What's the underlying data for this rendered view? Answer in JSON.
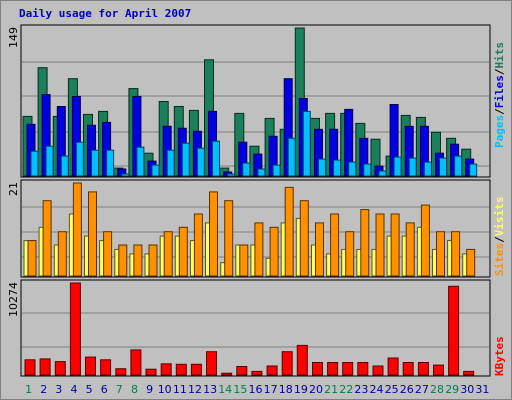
{
  "title": "Daily usage for April 2007",
  "colors": {
    "hits": "#1a7f5a",
    "files": "#0000e0",
    "pages": "#00c0ff",
    "visits": "#ffff60",
    "sites": "#ff9000",
    "kbytes": "#ff0000",
    "weekend_label": "#00804a",
    "weekday_label": "#0000a0",
    "title": "#0000c0"
  },
  "labels": {
    "right_top": [
      "Pages",
      "/",
      "Files",
      "/",
      "Hits"
    ],
    "right_mid": [
      "Sites",
      "/",
      "Visits"
    ],
    "right_bottom": "KBytes",
    "max_top": "149",
    "max_mid": "21",
    "max_bottom": "10274"
  },
  "chart_data": {
    "type": "bar",
    "title": "Daily usage for April 2007",
    "categories": [
      "1",
      "2",
      "3",
      "4",
      "5",
      "6",
      "7",
      "8",
      "9",
      "10",
      "11",
      "12",
      "13",
      "14",
      "15",
      "16",
      "17",
      "18",
      "19",
      "20",
      "21",
      "22",
      "23",
      "24",
      "25",
      "26",
      "27",
      "28",
      "29",
      "30",
      "31"
    ],
    "weekend_days": [
      "1",
      "7",
      "8",
      "14",
      "15",
      "21",
      "22",
      "28",
      "29"
    ],
    "panels": [
      {
        "name": "top",
        "ymax": 149,
        "series": [
          {
            "name": "Hits",
            "values": [
              60,
              109,
              60,
              98,
              62,
              65,
              8,
              88,
              23,
              75,
              70,
              66,
              117,
              8,
              63,
              30,
              58,
              47,
              149,
              58,
              63,
              63,
              53,
              37,
              20,
              61,
              59,
              44,
              38,
              27,
              0
            ]
          },
          {
            "name": "Files",
            "values": [
              52,
              82,
              70,
              80,
              51,
              54,
              7,
              80,
              15,
              50,
              48,
              45,
              65,
              4,
              34,
              22,
              40,
              98,
              78,
              47,
              47,
              67,
              38,
              10,
              72,
              50,
              50,
              23,
              32,
              17,
              0
            ]
          },
          {
            "name": "Pages",
            "values": [
              25,
              30,
              20,
              34,
              26,
              26,
              2,
              29,
              11,
              26,
              33,
              28,
              35,
              2,
              13,
              7,
              11,
              38,
              65,
              17,
              16,
              14,
              12,
              5,
              19,
              18,
              14,
              18,
              20,
              12,
              0
            ]
          }
        ]
      },
      {
        "name": "middle",
        "ymax": 21,
        "series": [
          {
            "name": "Visits",
            "values": [
              8,
              11,
              7,
              14,
              9,
              8,
              6,
              5,
              5,
              9,
              9,
              8,
              12,
              3,
              7,
              7,
              4,
              12,
              13,
              7,
              5,
              6,
              6,
              6,
              9,
              9,
              11,
              6,
              8,
              5,
              0
            ]
          },
          {
            "name": "Sites",
            "values": [
              8,
              17,
              10,
              21,
              19,
              10,
              7,
              7,
              7,
              10,
              11,
              14,
              19,
              17,
              7,
              12,
              11,
              20,
              17,
              12,
              14,
              10,
              15,
              14,
              14,
              12,
              16,
              10,
              10,
              6,
              0
            ]
          }
        ]
      },
      {
        "name": "bottom",
        "ymax": 10274,
        "series": [
          {
            "name": "KBytes",
            "values": [
              1700,
              1800,
              1500,
              10274,
              2000,
              1700,
              700,
              2800,
              650,
              1250,
              1200,
              1200,
              2600,
              200,
              950,
              400,
              1000,
              2600,
              3300,
              1400,
              1400,
              1400,
              1400,
              1000,
              1900,
              1400,
              1400,
              1100,
              9900,
              400,
              0
            ]
          }
        ]
      }
    ]
  }
}
